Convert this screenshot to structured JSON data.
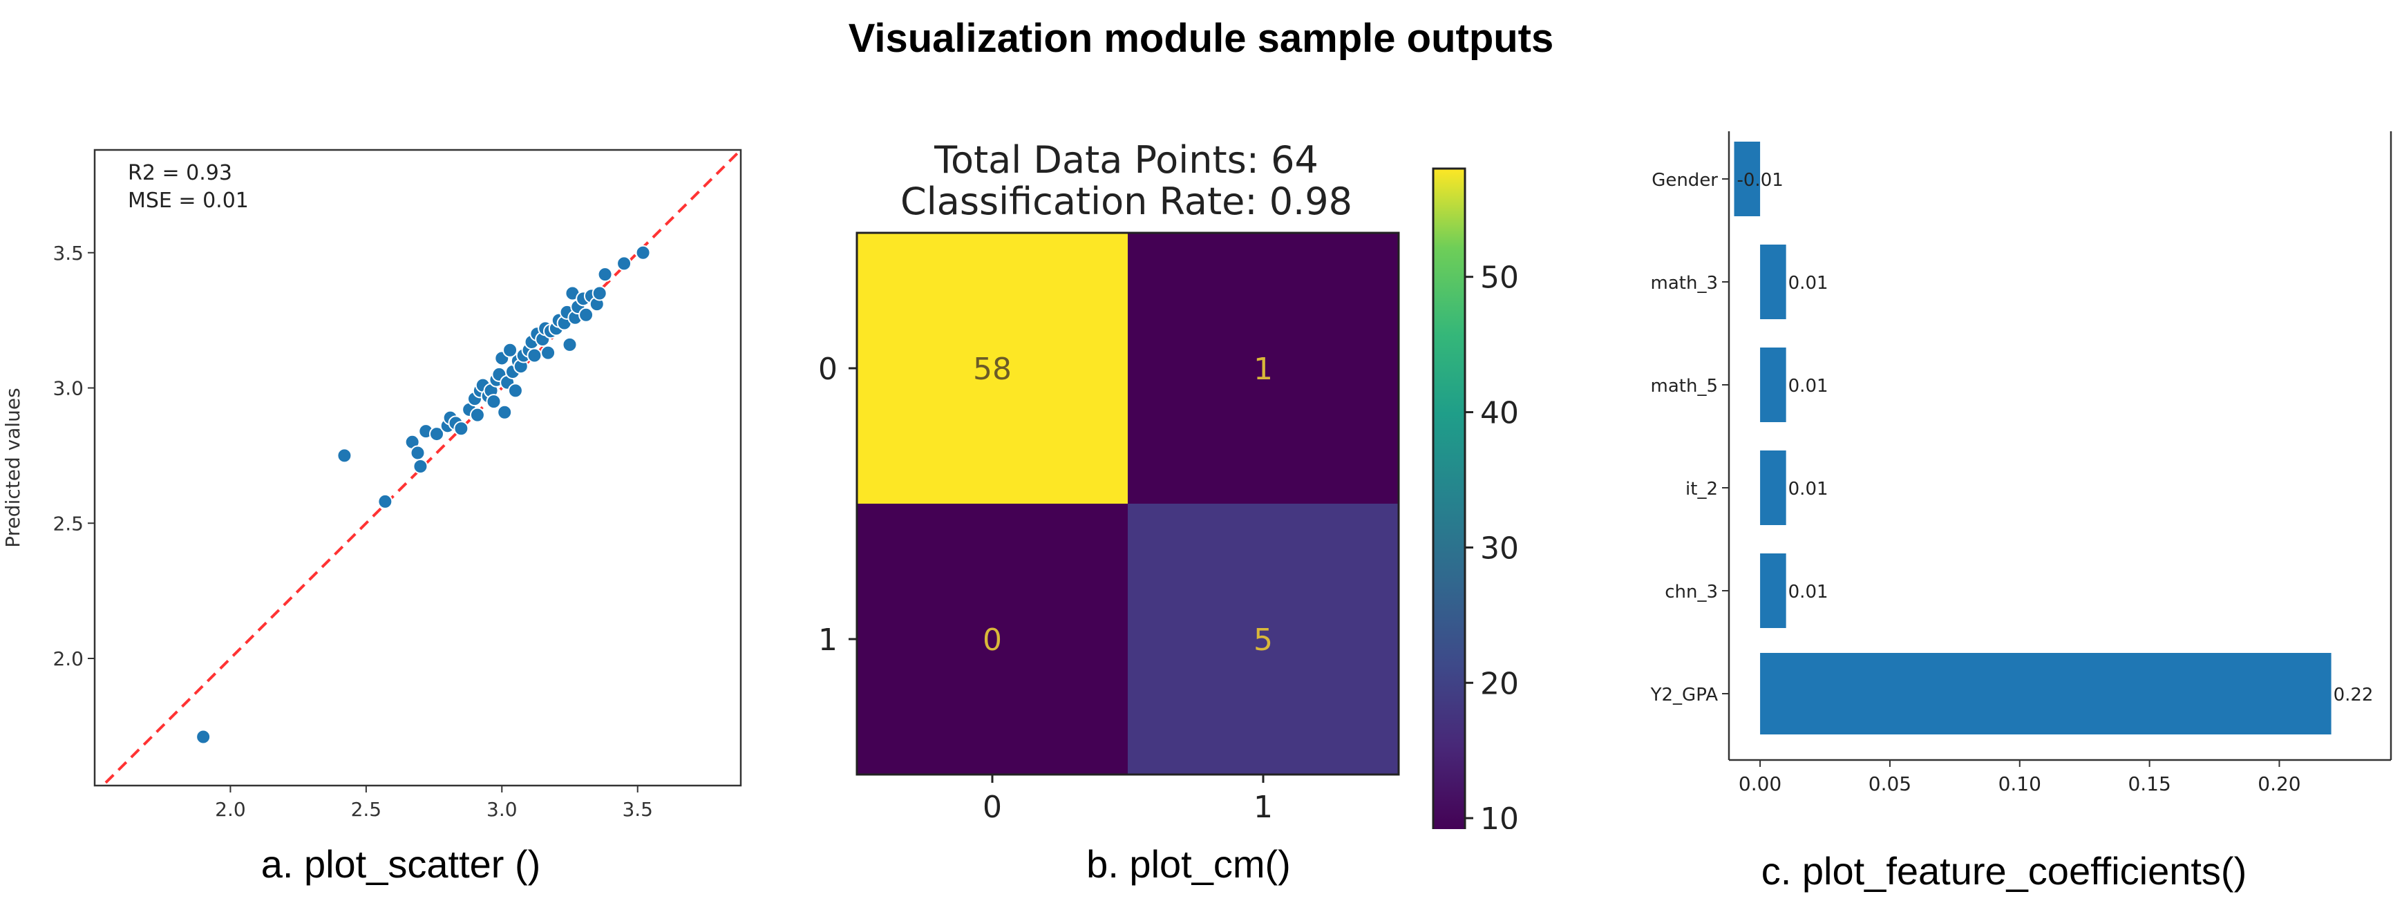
{
  "title": "Visualization module sample outputs",
  "captions": {
    "a": "a. plot_scatter ()",
    "b": "b. plot_cm()",
    "c": "c. plot_feature_coefficients()"
  },
  "chart_data": [
    {
      "type": "scatter",
      "ylabel": "Predicted values",
      "xlabel": "",
      "xlim": [
        1.5,
        3.88
      ],
      "ylim": [
        1.53,
        3.88
      ],
      "xticks": [
        "2.0",
        "2.5",
        "3.0",
        "3.5"
      ],
      "yticks": [
        "2.0",
        "2.5",
        "3.0",
        "3.5"
      ],
      "annotations": [
        "R2 =  0.93",
        "MSE = 0.01"
      ],
      "reference_line": "y = x",
      "point_color": "#1f77b4",
      "line_color": "#ff3333",
      "points": [
        [
          1.9,
          1.71
        ],
        [
          2.42,
          2.75
        ],
        [
          2.57,
          2.58
        ],
        [
          2.67,
          2.8
        ],
        [
          2.69,
          2.76
        ],
        [
          2.7,
          2.71
        ],
        [
          2.72,
          2.84
        ],
        [
          2.76,
          2.83
        ],
        [
          2.8,
          2.86
        ],
        [
          2.81,
          2.89
        ],
        [
          2.83,
          2.87
        ],
        [
          2.85,
          2.85
        ],
        [
          2.88,
          2.92
        ],
        [
          2.9,
          2.96
        ],
        [
          2.91,
          2.9
        ],
        [
          2.92,
          2.99
        ],
        [
          2.93,
          3.01
        ],
        [
          2.95,
          2.97
        ],
        [
          2.96,
          2.99
        ],
        [
          2.98,
          3.03
        ],
        [
          2.99,
          3.05
        ],
        [
          3.0,
          3.11
        ],
        [
          3.01,
          2.91
        ],
        [
          3.02,
          3.02
        ],
        [
          3.04,
          3.06
        ],
        [
          3.05,
          2.99
        ],
        [
          3.06,
          3.1
        ],
        [
          3.07,
          3.08
        ],
        [
          3.08,
          3.12
        ],
        [
          3.1,
          3.14
        ],
        [
          3.11,
          3.17
        ],
        [
          3.12,
          3.12
        ],
        [
          3.13,
          3.2
        ],
        [
          3.15,
          3.18
        ],
        [
          3.16,
          3.22
        ],
        [
          3.17,
          3.13
        ],
        [
          3.18,
          3.21
        ],
        [
          3.2,
          3.22
        ],
        [
          3.21,
          3.25
        ],
        [
          3.23,
          3.24
        ],
        [
          3.24,
          3.28
        ],
        [
          3.25,
          3.16
        ],
        [
          3.26,
          3.35
        ],
        [
          3.27,
          3.26
        ],
        [
          3.28,
          3.3
        ],
        [
          3.3,
          3.33
        ],
        [
          3.31,
          3.27
        ],
        [
          3.33,
          3.34
        ],
        [
          3.35,
          3.31
        ],
        [
          3.36,
          3.35
        ],
        [
          3.38,
          3.42
        ],
        [
          3.45,
          3.46
        ],
        [
          3.52,
          3.5
        ],
        [
          3.03,
          3.14
        ],
        [
          2.97,
          2.95
        ]
      ]
    },
    {
      "type": "heatmap",
      "title_lines": [
        "Total Data Points: 64",
        "Classification Rate: 0.98"
      ],
      "x_categories": [
        "0",
        "1"
      ],
      "y_categories": [
        "0",
        "1"
      ],
      "matrix": [
        [
          58,
          1
        ],
        [
          0,
          5
        ]
      ],
      "colorbar_ticks": [
        10,
        20,
        30,
        40,
        50
      ],
      "colorbar_range": [
        0,
        58
      ],
      "colors": {
        "high": "#fde725",
        "low": "#440154",
        "mid": "#453781",
        "low_text": "#d9b83a",
        "high_text": "#6b5b28"
      }
    },
    {
      "type": "bar",
      "orientation": "horizontal",
      "categories": [
        "Gender",
        "math_3",
        "math_5",
        "it_2",
        "chn_3",
        "Y2_GPA"
      ],
      "values": [
        -0.01,
        0.01,
        0.01,
        0.01,
        0.01,
        0.22
      ],
      "value_labels": [
        "-0.01",
        "0.01",
        "0.01",
        "0.01",
        "0.01",
        "0.22"
      ],
      "xlim": [
        -0.012,
        0.243
      ],
      "xticks": [
        "0.00",
        "0.05",
        "0.10",
        "0.15",
        "0.20"
      ],
      "bar_color": "#1f77b4"
    }
  ]
}
